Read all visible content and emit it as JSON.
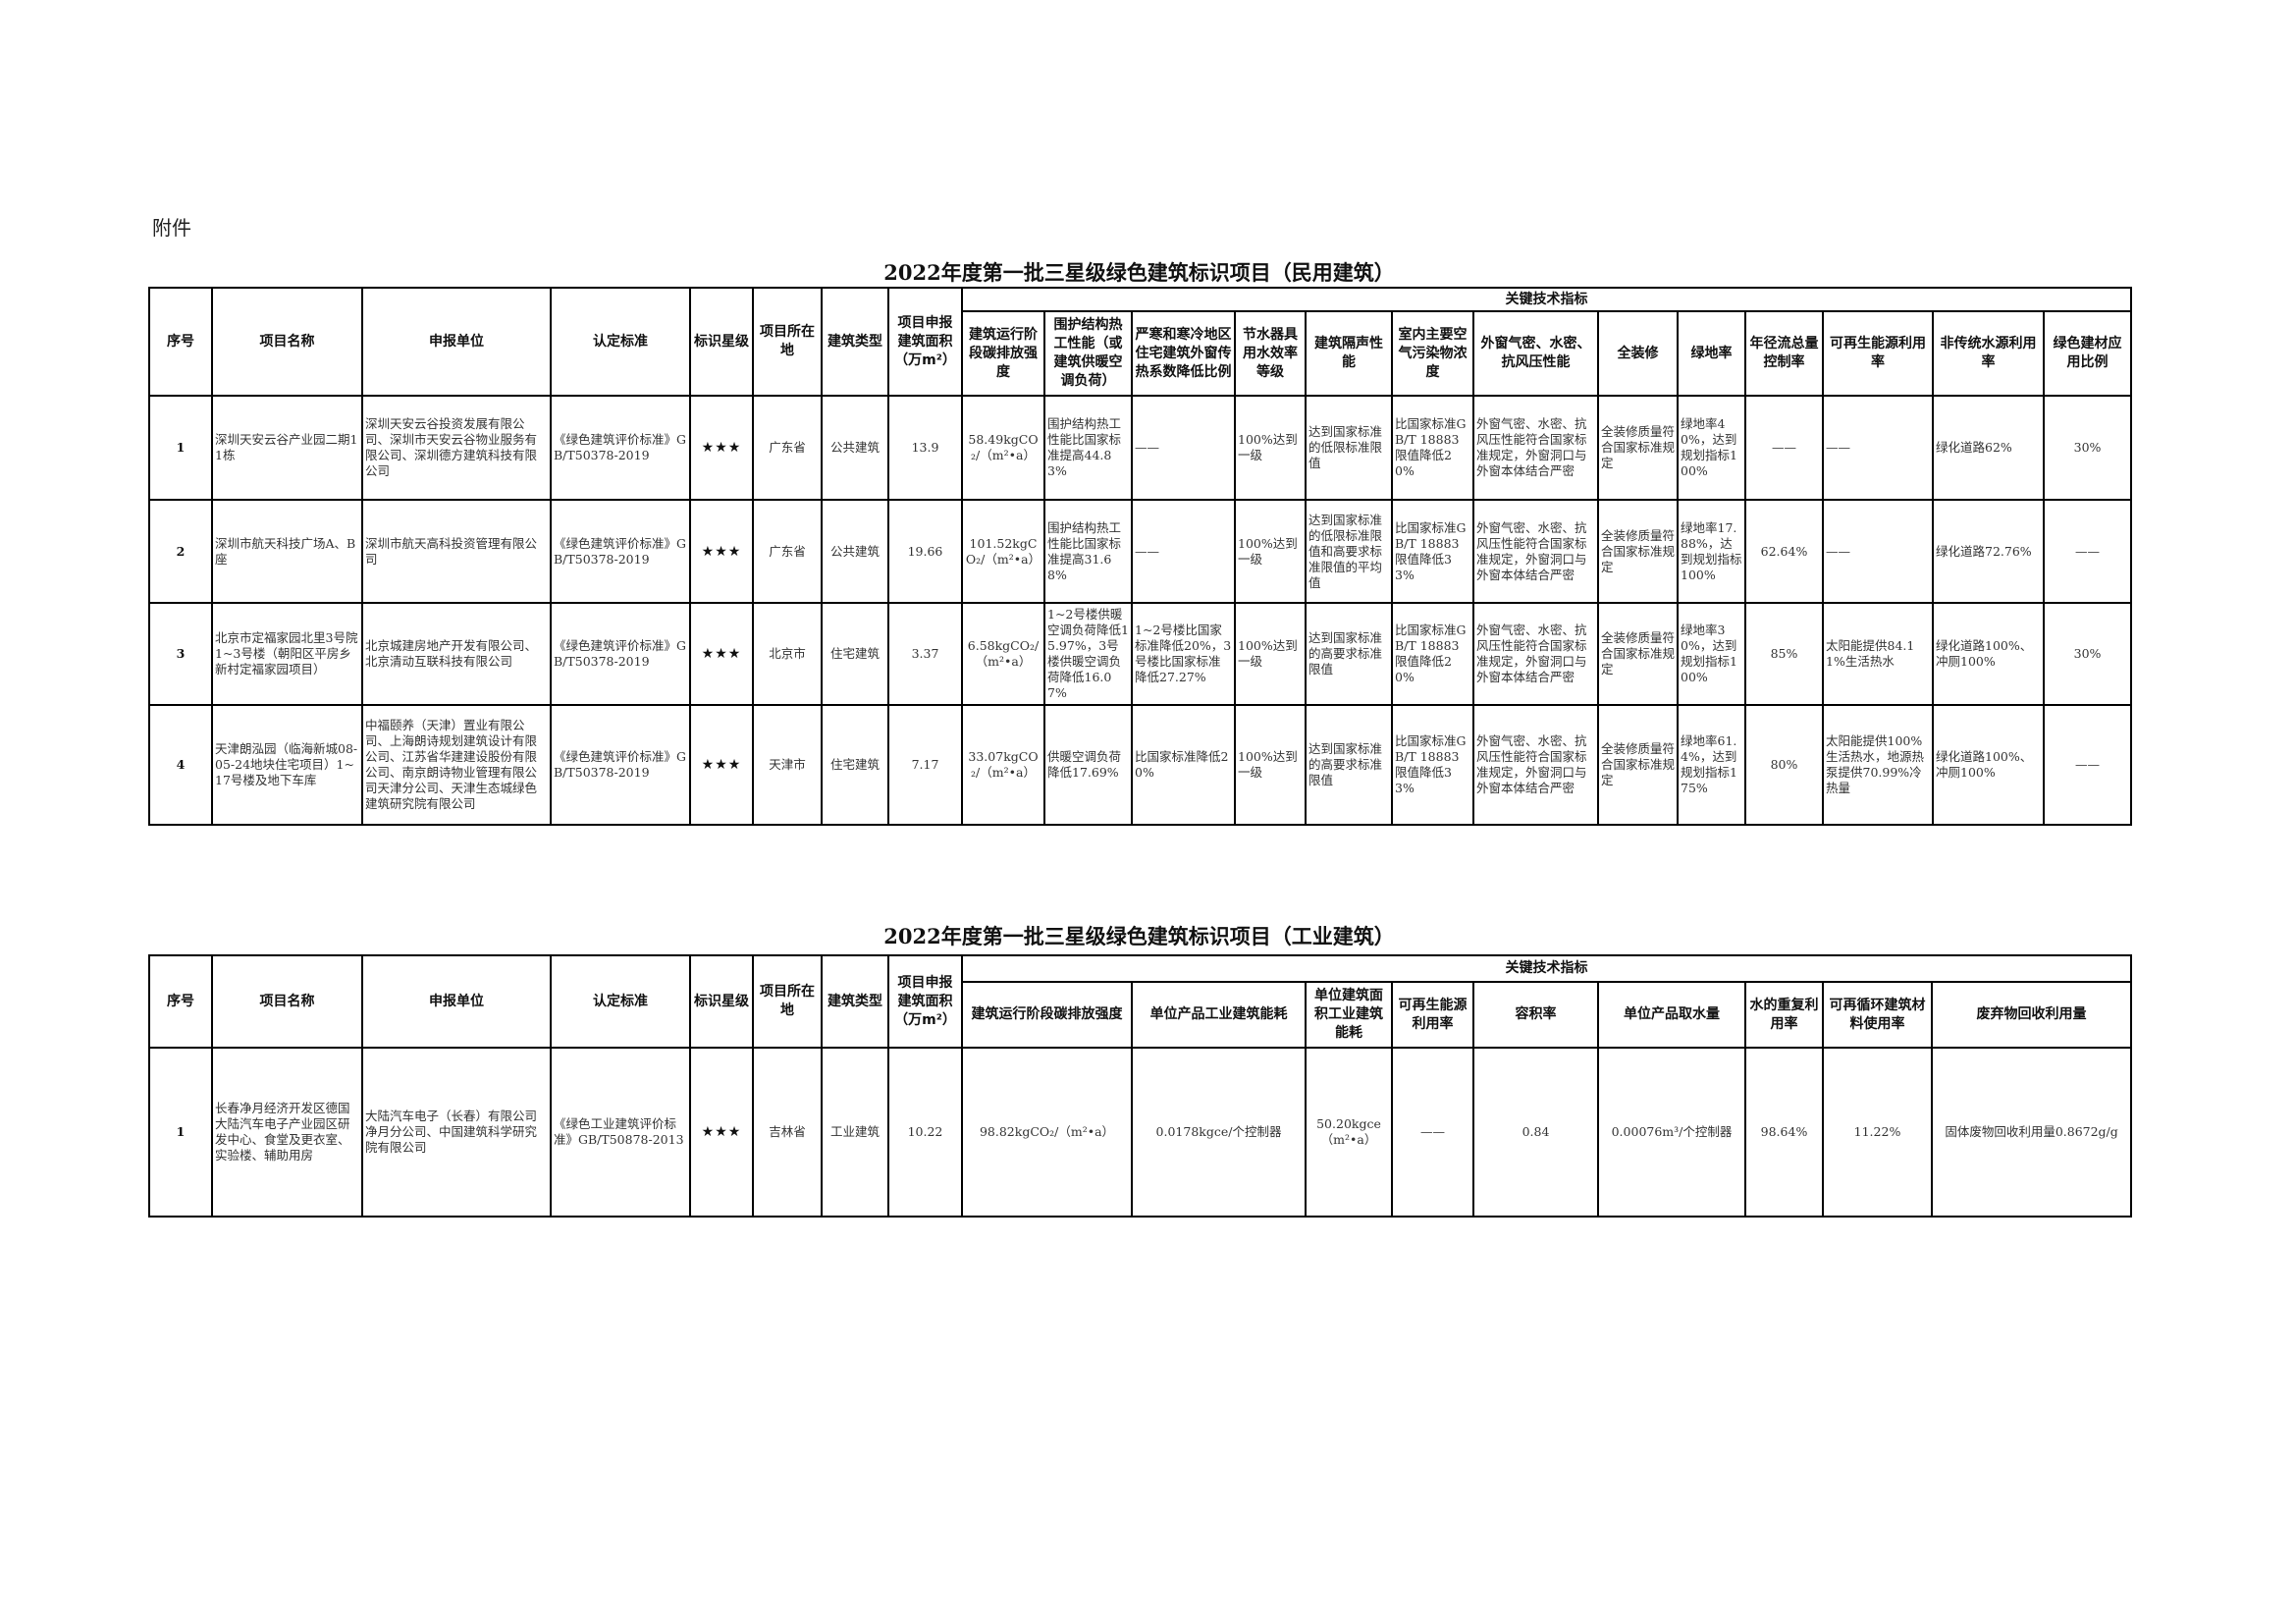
{
  "attachment_label": "附件",
  "civil": {
    "title": "2022年度第一批三星级绿色建筑标识项目（民用建筑）",
    "key_indicators_label": "关键技术指标",
    "headers": [
      "序号",
      "项目名称",
      "申报单位",
      "认定标准",
      "标识星级",
      "项目所在地",
      "建筑类型",
      "项目申报建筑面积（万m²）"
    ],
    "key_headers": [
      "建筑运行阶段碳排放强度",
      "围护结构热工性能（或建筑供暖空调负荷）",
      "严寒和寒冷地区住宅建筑外窗传热系数降低比例",
      "节水器具用水效率等级",
      "建筑隔声性能",
      "室内主要空气污染物浓度",
      "外窗气密、水密、抗风压性能",
      "全装修",
      "绿地率",
      "年径流总量控制率",
      "可再生能源利用率",
      "非传统水源利用率",
      "绿色建材应用比例"
    ],
    "rows": [
      {
        "cells": [
          "1",
          "深圳天安云谷产业园二期11栋",
          "深圳天安云谷投资发展有限公司、深圳市天安云谷物业服务有限公司、深圳德方建筑科技有限公司",
          "《绿色建筑评价标准》GB/T50378-2019",
          "★★★",
          "广东省",
          "公共建筑",
          "13.9",
          "58.49kgCO₂/（m²•a）",
          "围护结构热工性能比国家标准提高44.83%",
          "——",
          "100%达到一级",
          "达到国家标准的低限标准限值",
          "比国家标准GB/T 18883限值降低20%",
          "外窗气密、水密、抗风压性能符合国家标准规定，外窗洞口与外窗本体结合严密",
          "全装修质量符合国家标准规定",
          "绿地率40%，达到规划指标100%",
          "——",
          "——",
          "绿化道路62%",
          "30%"
        ]
      },
      {
        "cells": [
          "2",
          "深圳市航天科技广场A、B座",
          "深圳市航天高科投资管理有限公司",
          "《绿色建筑评价标准》GB/T50378-2019",
          "★★★",
          "广东省",
          "公共建筑",
          "19.66",
          "101.52kgCO₂/（m²•a）",
          "围护结构热工性能比国家标准提高31.68%",
          "——",
          "100%达到一级",
          "达到国家标准的低限标准限值和高要求标准限值的平均值",
          "比国家标准GB/T 18883限值降低33%",
          "外窗气密、水密、抗风压性能符合国家标准规定，外窗洞口与外窗本体结合严密",
          "全装修质量符合国家标准规定",
          "绿地率17.88%，达到规划指标100%",
          "62.64%",
          "——",
          "绿化道路72.76%",
          "——"
        ]
      },
      {
        "cells": [
          "3",
          "北京市定福家园北里3号院1~3号楼（朝阳区平房乡新村定福家园项目）",
          "北京城建房地产开发有限公司、北京清动互联科技有限公司",
          "《绿色建筑评价标准》GB/T50378-2019",
          "★★★",
          "北京市",
          "住宅建筑",
          "3.37",
          "6.58kgCO₂/（m²•a）",
          "1~2号楼供暖空调负荷降低15.97%，3号楼供暖空调负荷降低16.07%",
          "1~2号楼比国家标准降低20%，3号楼比国家标准降低27.27%",
          "100%达到一级",
          "达到国家标准的高要求标准限值",
          "比国家标准GB/T 18883限值降低20%",
          "外窗气密、水密、抗风压性能符合国家标准规定，外窗洞口与外窗本体结合严密",
          "全装修质量符合国家标准规定",
          "绿地率30%，达到规划指标100%",
          "85%",
          "太阳能提供84.11%生活热水",
          "绿化道路100%、冲厕100%",
          "30%"
        ]
      },
      {
        "cells": [
          "4",
          "天津朗泓园（临海新城08-05-24地块住宅项目）1~17号楼及地下车库",
          "中福颐养（天津）置业有限公司、上海朗诗规划建筑设计有限公司、江苏省华建建设股份有限公司、南京朗诗物业管理有限公司天津分公司、天津生态城绿色建筑研究院有限公司",
          "《绿色建筑评价标准》GB/T50378-2019",
          "★★★",
          "天津市",
          "住宅建筑",
          "7.17",
          "33.07kgCO₂/（m²•a）",
          "供暖空调负荷降低17.69%",
          "比国家标准降低20%",
          "100%达到一级",
          "达到国家标准的高要求标准限值",
          "比国家标准GB/T 18883限值降低33%",
          "外窗气密、水密、抗风压性能符合国家标准规定，外窗洞口与外窗本体结合严密",
          "全装修质量符合国家标准规定",
          "绿地率61.4%，达到规划指标175%",
          "80%",
          "太阳能提供100%生活热水，地源热泵提供70.99%冷热量",
          "绿化道路100%、冲厕100%",
          "——"
        ]
      }
    ]
  },
  "industrial": {
    "title": "2022年度第一批三星级绿色建筑标识项目（工业建筑）",
    "key_indicators_label": "关键技术指标",
    "headers": [
      "序号",
      "项目名称",
      "申报单位",
      "认定标准",
      "标识星级",
      "项目所在地",
      "建筑类型",
      "项目申报建筑面积（万m²）"
    ],
    "key_headers": [
      "建筑运行阶段碳排放强度",
      "单位产品工业建筑能耗",
      "单位建筑面积工业建筑能耗",
      "可再生能源利用率",
      "容积率",
      "单位产品取水量",
      "水的重复利用率",
      "可再循环建筑材料使用率",
      "废弃物回收利用量"
    ],
    "rows": [
      {
        "cells": [
          "1",
          "长春净月经济开发区德国大陆汽车电子产业园区研发中心、食堂及更衣室、实验楼、辅助用房",
          "大陆汽车电子（长春）有限公司净月分公司、中国建筑科学研究院有限公司",
          "《绿色工业建筑评价标准》GB/T50878-2013",
          "★★★",
          "吉林省",
          "工业建筑",
          "10.22",
          "98.82kgCO₂/（m²•a）",
          "0.0178kgce/个控制器",
          "50.20kgce（m²•a）",
          "——",
          "0.84",
          "0.00076m³/个控制器",
          "98.64%",
          "11.22%",
          "固体废物回收利用量0.8672g/g"
        ]
      }
    ]
  }
}
